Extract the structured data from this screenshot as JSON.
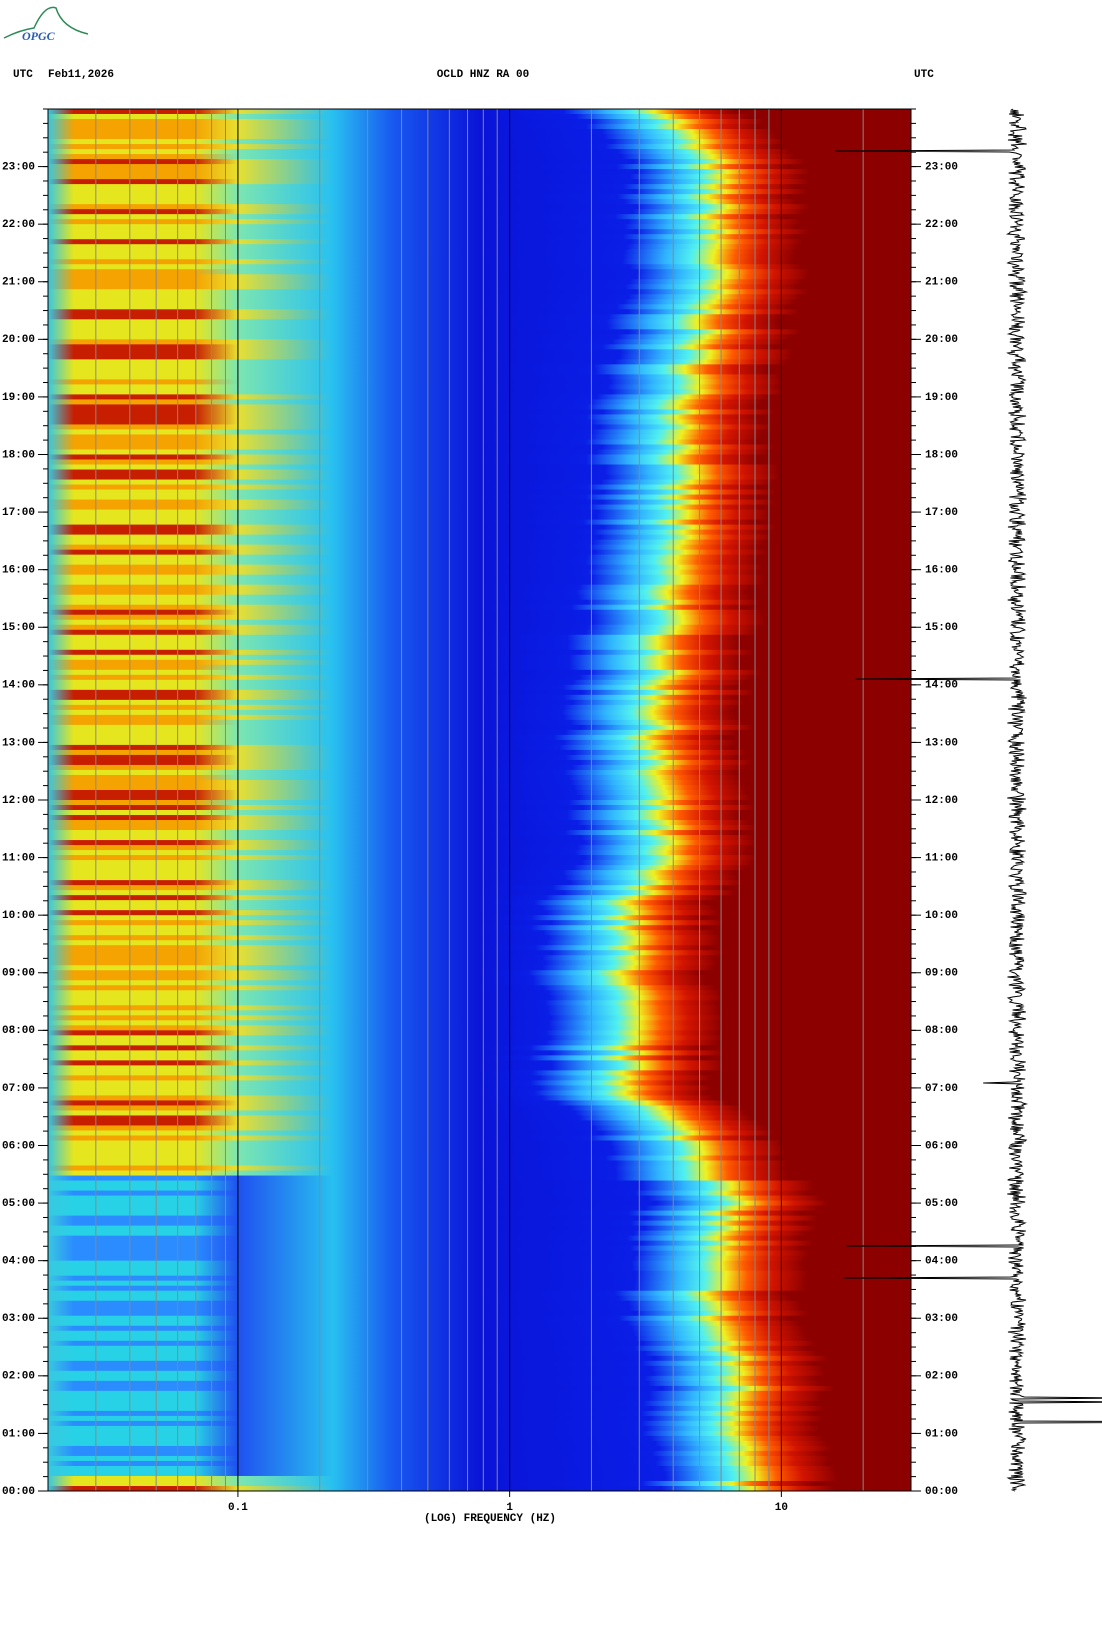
{
  "logo": "OPGC",
  "chart_data": {
    "type": "spectrogram",
    "title": "OCLD HNZ RA 00",
    "date": "Feb11,2026",
    "time_zone_left": "UTC",
    "time_zone_right": "UTC",
    "x_label": "(LOG) FREQUENCY (HZ)",
    "x_scale": "log",
    "xlim": [
      0.02,
      30
    ],
    "xticks": [
      0.1,
      1,
      10
    ],
    "xgrid": [
      0.03,
      0.04,
      0.05,
      0.06,
      0.07,
      0.08,
      0.09,
      0.2,
      0.3,
      0.4,
      0.5,
      0.6,
      0.7,
      0.8,
      0.9,
      2,
      3,
      4,
      5,
      6,
      7,
      8,
      9,
      20
    ],
    "ylim": [
      0,
      24
    ],
    "yticks": [
      {
        "value": 0,
        "label": "00:00"
      },
      {
        "value": 1,
        "label": "01:00"
      },
      {
        "value": 2,
        "label": "02:00"
      },
      {
        "value": 3,
        "label": "03:00"
      },
      {
        "value": 4,
        "label": "04:00"
      },
      {
        "value": 5,
        "label": "05:00"
      },
      {
        "value": 6,
        "label": "06:00"
      },
      {
        "value": 7,
        "label": "07:00"
      },
      {
        "value": 8,
        "label": "08:00"
      },
      {
        "value": 9,
        "label": "09:00"
      },
      {
        "value": 10,
        "label": "10:00"
      },
      {
        "value": 11,
        "label": "11:00"
      },
      {
        "value": 12,
        "label": "12:00"
      },
      {
        "value": 13,
        "label": "13:00"
      },
      {
        "value": 14,
        "label": "14:00"
      },
      {
        "value": 15,
        "label": "15:00"
      },
      {
        "value": 16,
        "label": "16:00"
      },
      {
        "value": 17,
        "label": "17:00"
      },
      {
        "value": 18,
        "label": "18:00"
      },
      {
        "value": 19,
        "label": "19:00"
      },
      {
        "value": 20,
        "label": "20:00"
      },
      {
        "value": 21,
        "label": "21:00"
      },
      {
        "value": 22,
        "label": "22:00"
      },
      {
        "value": 23,
        "label": "23:00"
      }
    ]
  }
}
